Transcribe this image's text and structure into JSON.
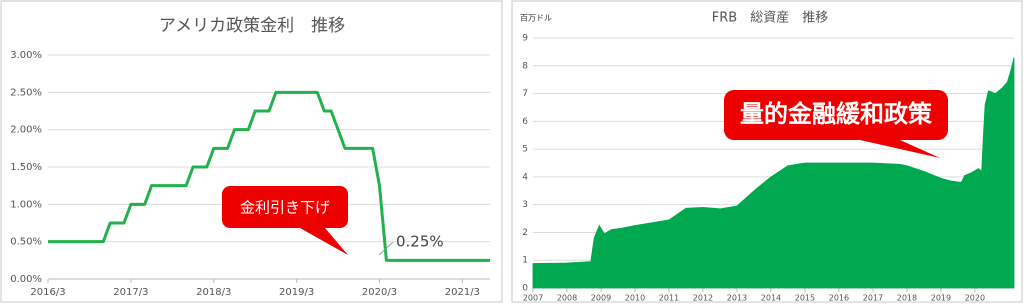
{
  "chart_data": [
    {
      "type": "line",
      "title": "アメリカ政策金利　推移",
      "categories": [
        "2016/3",
        null,
        null,
        null,
        null,
        null,
        null,
        null,
        null,
        null,
        null,
        null,
        "2017/3",
        null,
        null,
        null,
        null,
        null,
        null,
        null,
        null,
        null,
        null,
        null,
        "2018/3",
        null,
        null,
        null,
        null,
        null,
        null,
        null,
        null,
        null,
        null,
        null,
        "2019/3",
        null,
        null,
        null,
        null,
        null,
        null,
        null,
        null,
        null,
        null,
        null,
        "2020/3",
        null,
        null,
        null,
        null,
        null,
        null,
        null,
        null,
        null,
        null,
        null,
        "2021/3",
        null,
        null,
        null,
        null
      ],
      "values": [
        0.5,
        0.5,
        0.5,
        0.5,
        0.5,
        0.5,
        0.5,
        0.5,
        0.5,
        0.75,
        0.75,
        0.75,
        1.0,
        1.0,
        1.0,
        1.25,
        1.25,
        1.25,
        1.25,
        1.25,
        1.25,
        1.5,
        1.5,
        1.5,
        1.75,
        1.75,
        1.75,
        2.0,
        2.0,
        2.0,
        2.25,
        2.25,
        2.25,
        2.5,
        2.5,
        2.5,
        2.5,
        2.5,
        2.5,
        2.5,
        2.25,
        2.25,
        2.0,
        1.75,
        1.75,
        1.75,
        1.75,
        1.75,
        1.25,
        0.25,
        0.25,
        0.25,
        0.25,
        0.25,
        0.25,
        0.25,
        0.25,
        0.25,
        0.25,
        0.25,
        0.25,
        0.25,
        0.25,
        0.25,
        0.25
      ],
      "color": "#22b14c",
      "ylim": [
        0,
        3.0
      ],
      "yticks": [
        {
          "value": 0,
          "label": "0.00%"
        },
        {
          "value": 0.5,
          "label": "0.50%"
        },
        {
          "value": 1.0,
          "label": "1.00%"
        },
        {
          "value": 1.5,
          "label": "1.50%"
        },
        {
          "value": 2.0,
          "label": "2.00%"
        },
        {
          "value": 2.5,
          "label": "2.50%"
        },
        {
          "value": 3.0,
          "label": "3.00%"
        }
      ],
      "grid": true,
      "annotations": [
        "金利引き下げ",
        "0.25%"
      ]
    },
    {
      "type": "area",
      "title": "FRB　総資産　推移",
      "ylabel": "百万ドル",
      "x": [
        2007,
        2008,
        2008.7,
        2008.8,
        2008.95,
        2009.1,
        2009.3,
        2009.6,
        2010,
        2010.5,
        2011,
        2011.5,
        2012,
        2012.5,
        2013,
        2013.5,
        2014,
        2014.5,
        2015,
        2016,
        2017,
        2017.8,
        2018,
        2018.5,
        2019,
        2019.3,
        2019.6,
        2019.7,
        2019.9,
        2020.1,
        2020.2,
        2020.25,
        2020.3,
        2020.4,
        2020.6,
        2020.8,
        2020.95,
        2021.05,
        2021.15
      ],
      "values": [
        0.88,
        0.9,
        0.95,
        1.8,
        2.25,
        1.95,
        2.1,
        2.15,
        2.25,
        2.35,
        2.45,
        2.87,
        2.9,
        2.85,
        2.95,
        3.5,
        4.0,
        4.4,
        4.5,
        4.5,
        4.5,
        4.45,
        4.4,
        4.2,
        3.95,
        3.85,
        3.8,
        4.05,
        4.15,
        4.3,
        4.2,
        5.5,
        6.6,
        7.1,
        7.0,
        7.2,
        7.4,
        7.8,
        8.3
      ],
      "color": "#00a94f",
      "xlim": [
        2007,
        2021.15
      ],
      "xticks": [
        2007,
        2008,
        2009,
        2010,
        2011,
        2012,
        2013,
        2014,
        2015,
        2016,
        2017,
        2018,
        2019,
        2020
      ],
      "ylim": [
        0,
        9
      ],
      "yticks": [
        0,
        1,
        2,
        3,
        4,
        5,
        6,
        7,
        8,
        9
      ],
      "grid": true,
      "annotations": [
        "量的金融緩和政策"
      ]
    }
  ]
}
